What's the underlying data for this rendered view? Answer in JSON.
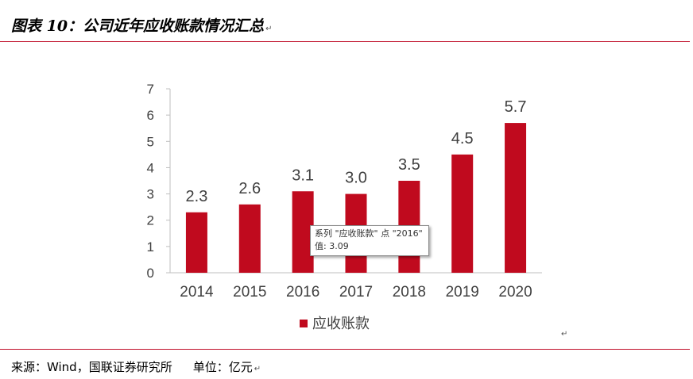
{
  "figure": {
    "title": "图表 10：公司近年应收账款情况汇总",
    "return_mark": "↵",
    "source": "来源：Wind，国联证券研究所",
    "unit": "单位：亿元"
  },
  "colors": {
    "bar": "#C00A1E",
    "rule": "#C0102A",
    "axis": "#BFBFBF",
    "text": "#404040"
  },
  "tooltip": {
    "line1": "系列 \"应收账款\" 点 \"2016\"",
    "line2": "值: 3.09"
  },
  "chart_data": {
    "type": "bar",
    "title": "",
    "categories": [
      "2014",
      "2015",
      "2016",
      "2017",
      "2018",
      "2019",
      "2020"
    ],
    "series": [
      {
        "name": "应收账款",
        "values": [
          2.3,
          2.6,
          3.1,
          3.0,
          3.5,
          4.5,
          5.7
        ],
        "labels": [
          "2.3",
          "2.6",
          "3.1",
          "3.0",
          "3.5",
          "4.5",
          "5.7"
        ]
      }
    ],
    "ylim": [
      0,
      7
    ],
    "yticks": [
      "0",
      "1",
      "2",
      "3",
      "4",
      "5",
      "6",
      "7"
    ],
    "xlabel": "",
    "ylabel": "",
    "grid": false,
    "legend": "bottom-center"
  }
}
